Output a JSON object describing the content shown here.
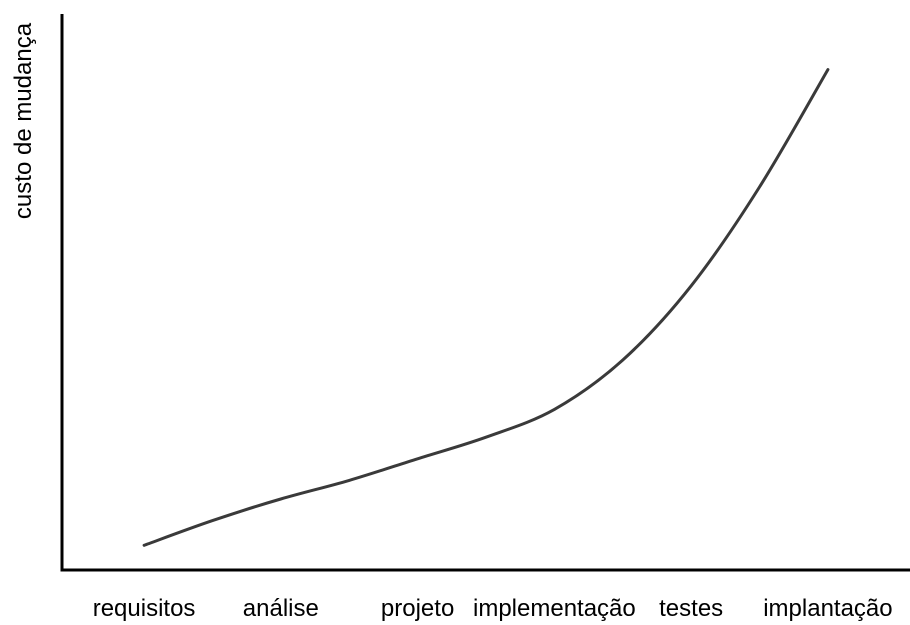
{
  "chart_data": {
    "type": "line",
    "title": "",
    "xlabel": "",
    "ylabel": "custo de mudança",
    "categories": [
      "requisitos",
      "análise",
      "projeto",
      "implementação",
      "testes",
      "implantação"
    ],
    "series": [
      {
        "x": [
          0,
          0.5,
          1,
          1.5,
          2,
          2.5,
          3,
          3.5,
          4,
          4.5,
          5
        ],
        "values": [
          0.08,
          0.16,
          0.23,
          0.29,
          0.36,
          0.43,
          0.52,
          0.68,
          0.92,
          1.24,
          1.62
        ]
      }
    ],
    "x_range": [
      -0.6,
      5.6
    ],
    "ylim": [
      0,
      1.8
    ],
    "grid": false,
    "legend": "none",
    "colors": {
      "line": "#3a3a3a",
      "axis": "#000000"
    }
  }
}
